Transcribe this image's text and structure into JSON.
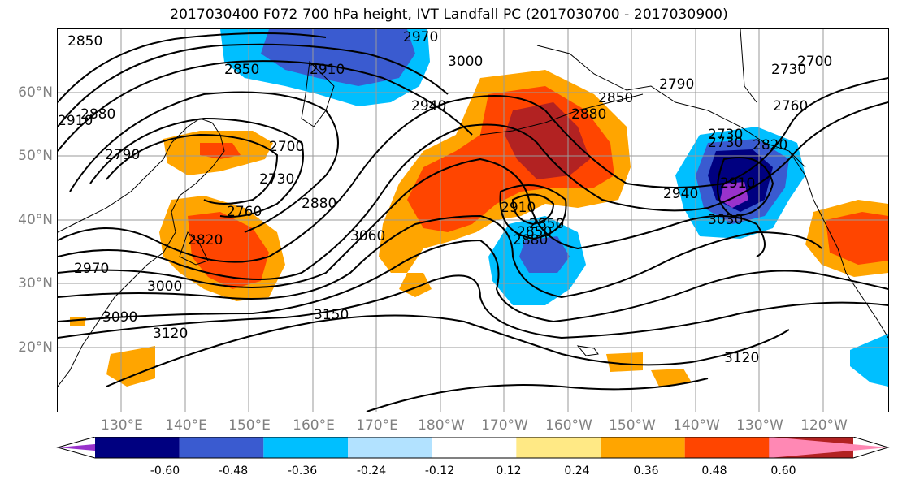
{
  "title": "2017030400 F072 700 hPa height, IVT Landfall PC (2017030700 - 2017030900)",
  "lat_labels": [
    "60°N",
    "50°N",
    "40°N",
    "30°N",
    "20°N"
  ],
  "lon_labels": [
    "130°E",
    "140°E",
    "150°E",
    "160°E",
    "170°E",
    "180°W",
    "170°W",
    "160°W",
    "150°W",
    "140°W",
    "130°W",
    "120°W"
  ],
  "contour_labels": [
    "2850",
    "2880",
    "2910",
    "2790",
    "2850",
    "2910",
    "2970",
    "3000",
    "2940",
    "2880",
    "2850",
    "2790",
    "2760",
    "2730",
    "2700",
    "2730",
    "2700",
    "2820",
    "2760",
    "2730",
    "2880",
    "2940",
    "2910",
    "2850",
    "2820",
    "3060",
    "2910",
    "2850",
    "2880",
    "2970",
    "3000",
    "3090",
    "3120",
    "3150",
    "3120",
    "2730",
    "2910",
    "3030"
  ],
  "colorbar": {
    "ticks": [
      "-0.60",
      "-0.48",
      "-0.36",
      "-0.24",
      "-0.12",
      "0.12",
      "0.24",
      "0.36",
      "0.48",
      "0.60"
    ],
    "colors": [
      "#9932cc",
      "#000080",
      "#3a5bd0",
      "#00bfff",
      "#b2e2ff",
      "#ffffff",
      "#ffe985",
      "#ffa500",
      "#ff4500",
      "#b22222",
      "#ff88b4"
    ]
  }
}
